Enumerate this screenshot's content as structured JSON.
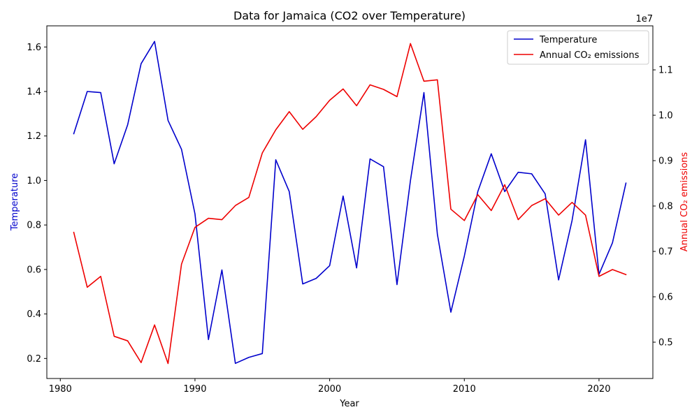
{
  "chart_data": {
    "type": "line",
    "title": "Data for Jamaica (CO2 over Temperature)",
    "xlabel": "Year",
    "ylabel_left": "Temperature",
    "ylabel_right": "Annual CO₂ emissions",
    "right_axis_multiplier": "1e7",
    "xlim": [
      1979,
      2024
    ],
    "ylim_left": [
      0.11,
      1.695
    ],
    "ylim_right": [
      4200000,
      11970000
    ],
    "x_ticks": [
      1980,
      1990,
      2000,
      2010,
      2020
    ],
    "y_ticks_left": [
      0.2,
      0.4,
      0.6,
      0.8,
      1.0,
      1.2,
      1.4,
      1.6
    ],
    "y_ticks_left_labels": [
      "0.2",
      "0.4",
      "0.6",
      "0.8",
      "1.0",
      "1.2",
      "1.4",
      "1.6"
    ],
    "y_ticks_right": [
      5000000,
      6000000,
      7000000,
      8000000,
      9000000,
      10000000,
      11000000
    ],
    "y_ticks_right_labels": [
      "0.5",
      "0.6",
      "0.7",
      "0.8",
      "0.9",
      "1.0",
      "1.1"
    ],
    "legend_position": "top-right",
    "x": [
      1981,
      1982,
      1983,
      1984,
      1985,
      1986,
      1987,
      1988,
      1989,
      1990,
      1991,
      1992,
      1993,
      1994,
      1995,
      1996,
      1997,
      1998,
      1999,
      2000,
      2001,
      2002,
      2003,
      2004,
      2005,
      2006,
      2007,
      2008,
      2009,
      2010,
      2011,
      2012,
      2013,
      2014,
      2015,
      2016,
      2017,
      2018,
      2019,
      2020,
      2021,
      2022
    ],
    "series": [
      {
        "name": "Temperature",
        "axis": "left",
        "color": "#0000cc",
        "values": [
          1.21,
          1.4,
          1.395,
          1.075,
          1.25,
          1.525,
          1.625,
          1.27,
          1.14,
          0.85,
          0.285,
          0.598,
          0.178,
          0.205,
          0.222,
          1.093,
          0.95,
          0.535,
          0.56,
          0.617,
          0.93,
          0.607,
          1.097,
          1.062,
          0.532,
          1.0,
          1.395,
          0.758,
          0.408,
          0.66,
          0.95,
          1.12,
          0.95,
          1.037,
          1.03,
          0.94,
          0.553,
          0.82,
          1.183,
          0.578,
          0.72,
          0.988
        ]
      },
      {
        "name": "Annual CO₂ emissions",
        "axis": "right",
        "color": "#ee0000",
        "values": [
          7420000,
          6210000,
          6450000,
          5130000,
          5030000,
          4550000,
          5380000,
          4530000,
          6720000,
          7530000,
          7730000,
          7700000,
          8010000,
          8190000,
          9170000,
          9680000,
          10080000,
          9690000,
          9970000,
          10330000,
          10580000,
          10210000,
          10670000,
          10570000,
          10410000,
          11580000,
          10750000,
          10780000,
          7930000,
          7680000,
          8250000,
          7900000,
          8470000,
          7700000,
          8010000,
          8160000,
          7800000,
          8080000,
          7800000,
          6450000,
          6600000,
          6490000
        ]
      }
    ]
  }
}
